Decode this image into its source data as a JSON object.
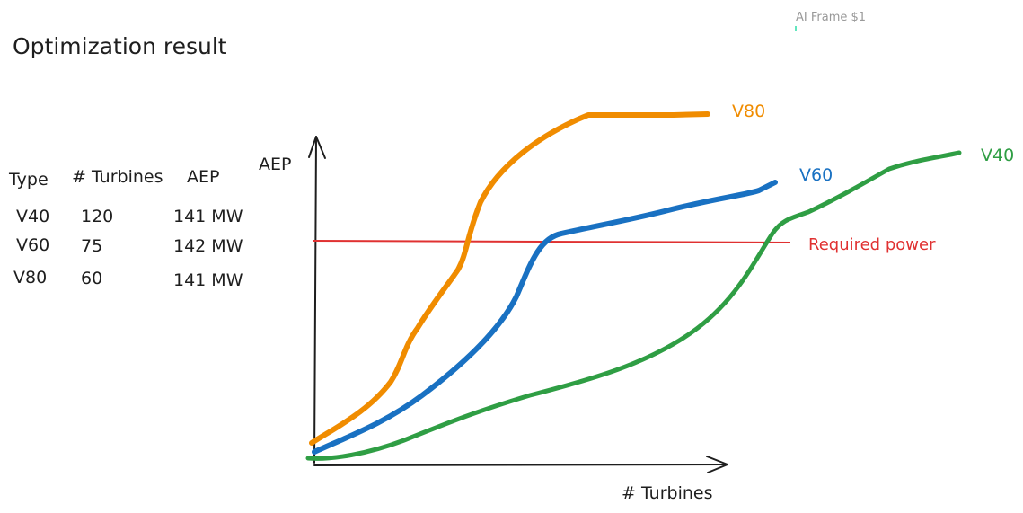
{
  "frame_label": "AI Frame $1",
  "title": "Optimization result",
  "table": {
    "header": [
      "Type",
      "# Turbines",
      "AEP"
    ],
    "rows": [
      [
        "V40",
        "120",
        "141 MW"
      ],
      [
        "V60",
        "75",
        "142 MW"
      ],
      [
        "V80",
        "60",
        "141 MW"
      ]
    ]
  },
  "sketch": {
    "y_axis_label": "AEP",
    "x_axis_label": "# Turbines",
    "curves": [
      "V80",
      "V60",
      "V40"
    ],
    "threshold_label": "Required power"
  }
}
